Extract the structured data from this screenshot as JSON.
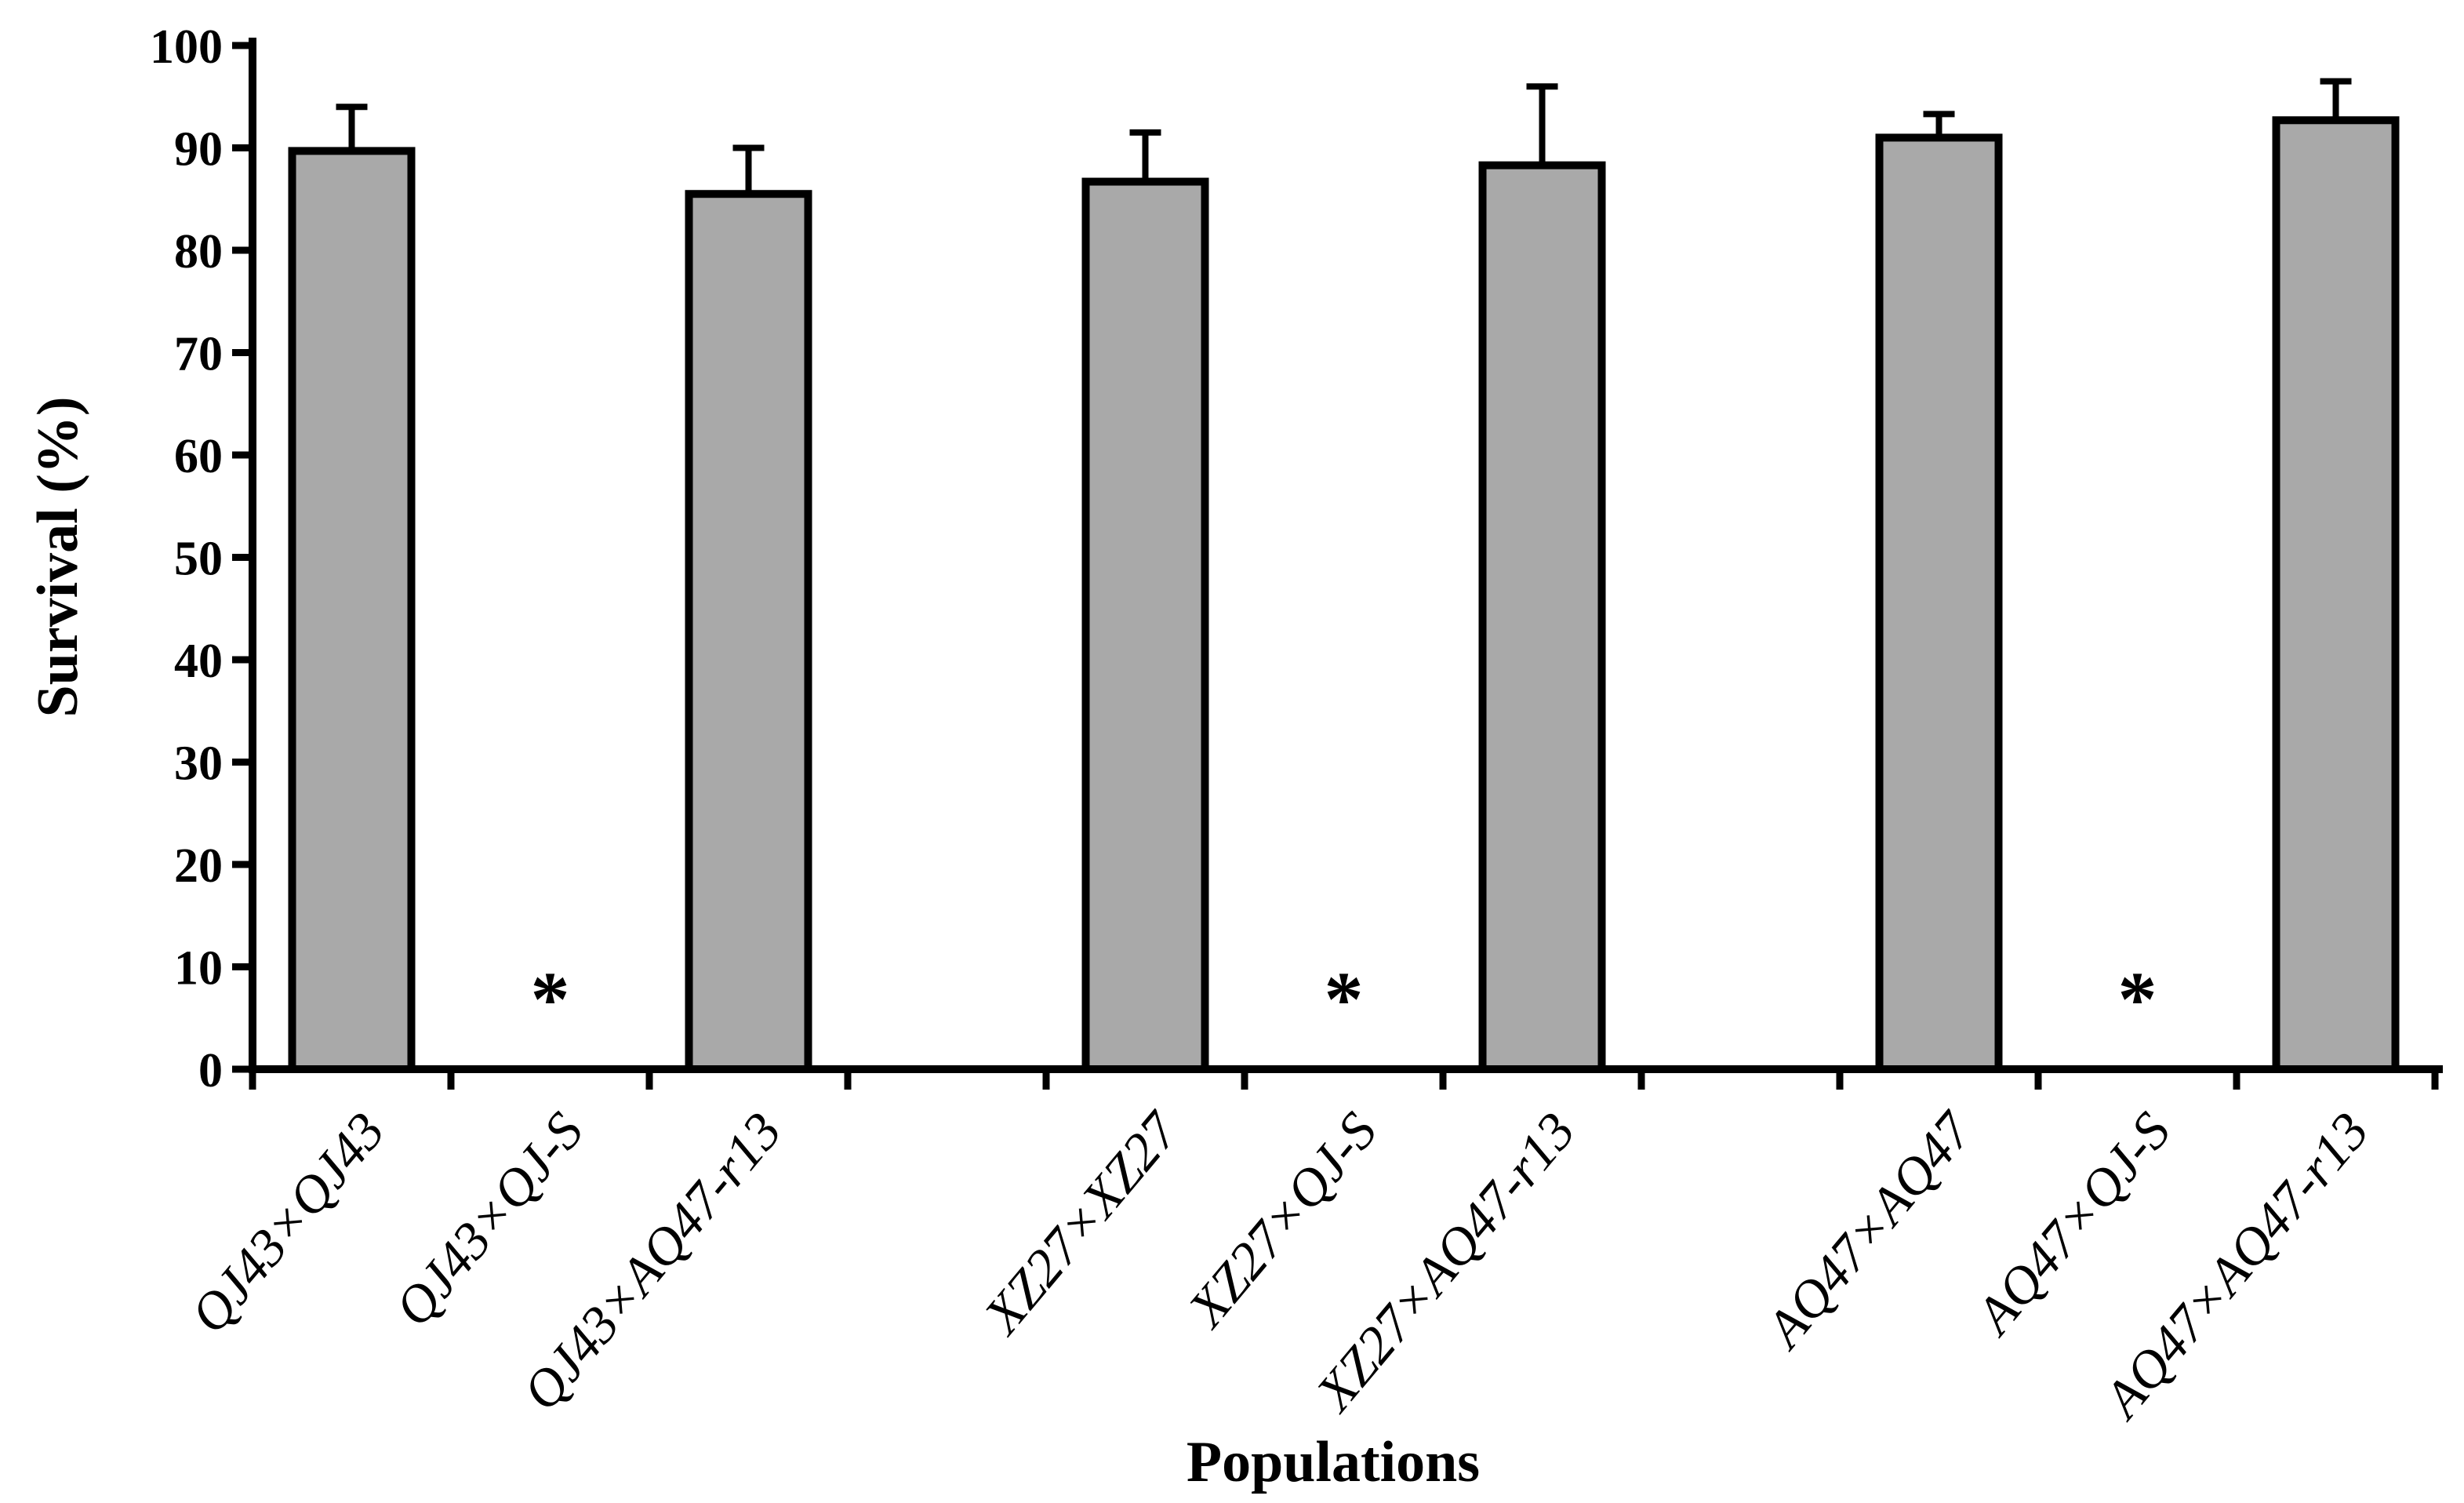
{
  "chart_data": {
    "type": "bar",
    "title": "",
    "xlabel": "Populations",
    "ylabel": "Survival (%)",
    "categories": [
      "QJ43×QJ43",
      "QJ43×QJ-S",
      "QJ43×AQ47-r13",
      "XZ27×XZ27",
      "XZ27×QJ-S",
      "XZ27×AQ47-r13",
      "AQ47×AQ47",
      "AQ47×QJ-S",
      "AQ47×AQ47-r13"
    ],
    "values": [
      89.7,
      0,
      85.5,
      86.7,
      0,
      88.3,
      91.0,
      0,
      92.7
    ],
    "error_plus": [
      4.3,
      0,
      4.5,
      4.8,
      0,
      7.7,
      2.3,
      0,
      3.8
    ],
    "zero_marker": "*",
    "zero_marker_categories": [
      "QJ43×QJ-S",
      "XZ27×QJ-S",
      "AQ47×QJ-S"
    ],
    "group_gap_after_indices": [
      2,
      5
    ],
    "ylim": [
      0,
      100
    ],
    "ytick_step": 10,
    "ytick_labels": [
      "0",
      "10",
      "20",
      "30",
      "40",
      "50",
      "60",
      "70",
      "80",
      "90",
      "100"
    ],
    "grid": false,
    "legend": false,
    "bar_fill_color": "#a9a9a9",
    "bar_border_color": "#000000",
    "background_color": "#ffffff"
  }
}
